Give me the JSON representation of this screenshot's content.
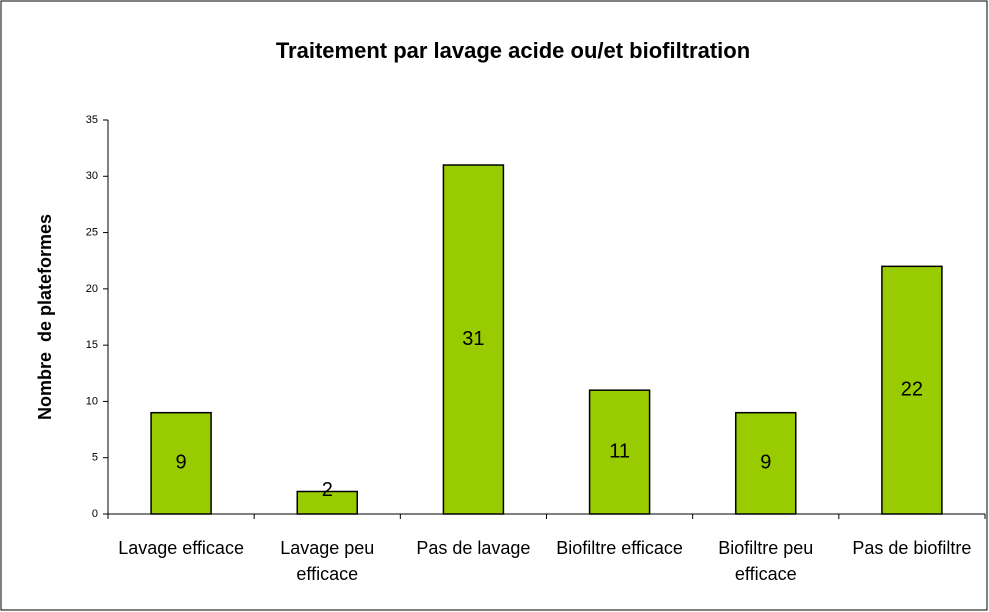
{
  "chart_data": {
    "type": "bar",
    "title": "Traitement par lavage acide ou/et biofiltration",
    "ylabel": "Nombre  de plateformes",
    "categories": [
      "Lavage efficace",
      "Lavage peu efficace",
      "Pas de lavage",
      "Biofiltre efficace",
      "Biofiltre peu efficace",
      "Pas de biofiltre"
    ],
    "values": [
      9,
      2,
      31,
      11,
      9,
      22
    ],
    "color": "#99cc00",
    "ylim": [
      0,
      35
    ],
    "yticks": [
      0,
      5,
      10,
      15,
      20,
      25,
      30,
      35
    ],
    "grid": false
  }
}
